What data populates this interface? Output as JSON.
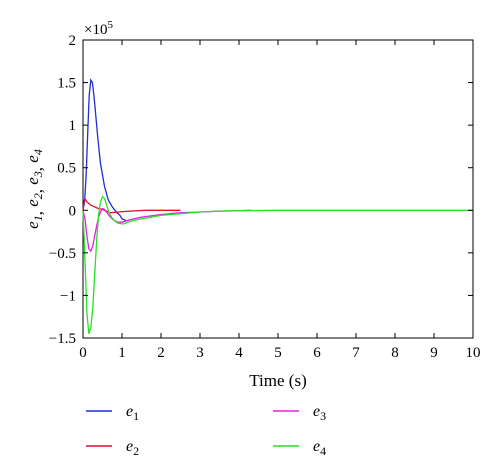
{
  "chart_data": {
    "type": "line",
    "xlabel": "Time (s)",
    "ylabel_symbol": "e",
    "ylabel_subs": [
      "1",
      "2",
      "3",
      "4"
    ],
    "ylabel_sep": ", ",
    "exponent_label": "×10",
    "exponent_power": "5",
    "xlim": [
      0,
      10
    ],
    "ylim": [
      -1.5,
      2
    ],
    "xticks": [
      "0",
      "1",
      "2",
      "3",
      "4",
      "5",
      "6",
      "7",
      "8",
      "9",
      "10"
    ],
    "yticks": [
      "−1.5",
      "−1",
      "−0.5",
      "0",
      "0.5",
      "1",
      "1.5",
      "2"
    ],
    "ytick_values": [
      -1.5,
      -1,
      -0.5,
      0,
      0.5,
      1,
      1.5,
      2
    ],
    "legend_position": "bottom",
    "series": [
      {
        "name": "e1",
        "symbol": "e",
        "sub": "1",
        "color": "#1f2fd0",
        "x": [
          0,
          0.04,
          0.08,
          0.12,
          0.16,
          0.2,
          0.24,
          0.28,
          0.32,
          0.38,
          0.45,
          0.55,
          0.65,
          0.75,
          0.85,
          0.95,
          1.0,
          1.1
        ],
        "y": [
          0,
          0.1,
          0.4,
          0.9,
          1.35,
          1.53,
          1.5,
          1.35,
          1.15,
          0.85,
          0.55,
          0.28,
          0.12,
          0.04,
          -0.02,
          -0.06,
          -0.1,
          -0.12
        ]
      },
      {
        "name": "e2",
        "symbol": "e",
        "sub": "2",
        "color": "#e0102e",
        "x": [
          0,
          0.03,
          0.06,
          0.1,
          0.15,
          0.2,
          0.3,
          0.4,
          0.5,
          0.6,
          0.7,
          0.9,
          1.2,
          1.6,
          2.0,
          2.5
        ],
        "y": [
          0,
          0.12,
          0.13,
          0.1,
          0.08,
          0.06,
          0.04,
          0.02,
          0.01,
          -0.01,
          -0.03,
          -0.02,
          -0.01,
          0,
          0,
          0
        ]
      },
      {
        "name": "e3",
        "symbol": "e",
        "sub": "3",
        "color": "#e020e0",
        "x": [
          0,
          0.05,
          0.1,
          0.15,
          0.2,
          0.25,
          0.3,
          0.35,
          0.4,
          0.45,
          0.5,
          0.55,
          0.6,
          0.7,
          0.8,
          0.9,
          1.0,
          1.2,
          1.5,
          2.0,
          2.5,
          3.0,
          3.5,
          4.0,
          4.3
        ],
        "y": [
          0,
          -0.1,
          -0.3,
          -0.45,
          -0.48,
          -0.42,
          -0.3,
          -0.18,
          -0.08,
          -0.02,
          0.02,
          0.01,
          -0.02,
          -0.08,
          -0.12,
          -0.14,
          -0.14,
          -0.11,
          -0.08,
          -0.05,
          -0.03,
          -0.02,
          -0.01,
          -0.005,
          0
        ]
      },
      {
        "name": "e4",
        "symbol": "e",
        "sub": "4",
        "color": "#27e027",
        "x": [
          0,
          0.05,
          0.1,
          0.15,
          0.2,
          0.25,
          0.3,
          0.35,
          0.4,
          0.45,
          0.5,
          0.55,
          0.6,
          0.65,
          0.7,
          0.8,
          0.9,
          1.0,
          1.05,
          1.2,
          1.5,
          2.0,
          2.5,
          3.0,
          3.5,
          4.0,
          5.0,
          7.0,
          10.0
        ],
        "y": [
          0,
          -0.6,
          -1.2,
          -1.45,
          -1.38,
          -1.15,
          -0.75,
          -0.35,
          -0.05,
          0.1,
          0.16,
          0.14,
          0.07,
          0.0,
          -0.06,
          -0.12,
          -0.15,
          -0.16,
          -0.16,
          -0.13,
          -0.1,
          -0.06,
          -0.04,
          -0.02,
          -0.01,
          -0.005,
          0,
          0,
          0
        ]
      }
    ]
  }
}
